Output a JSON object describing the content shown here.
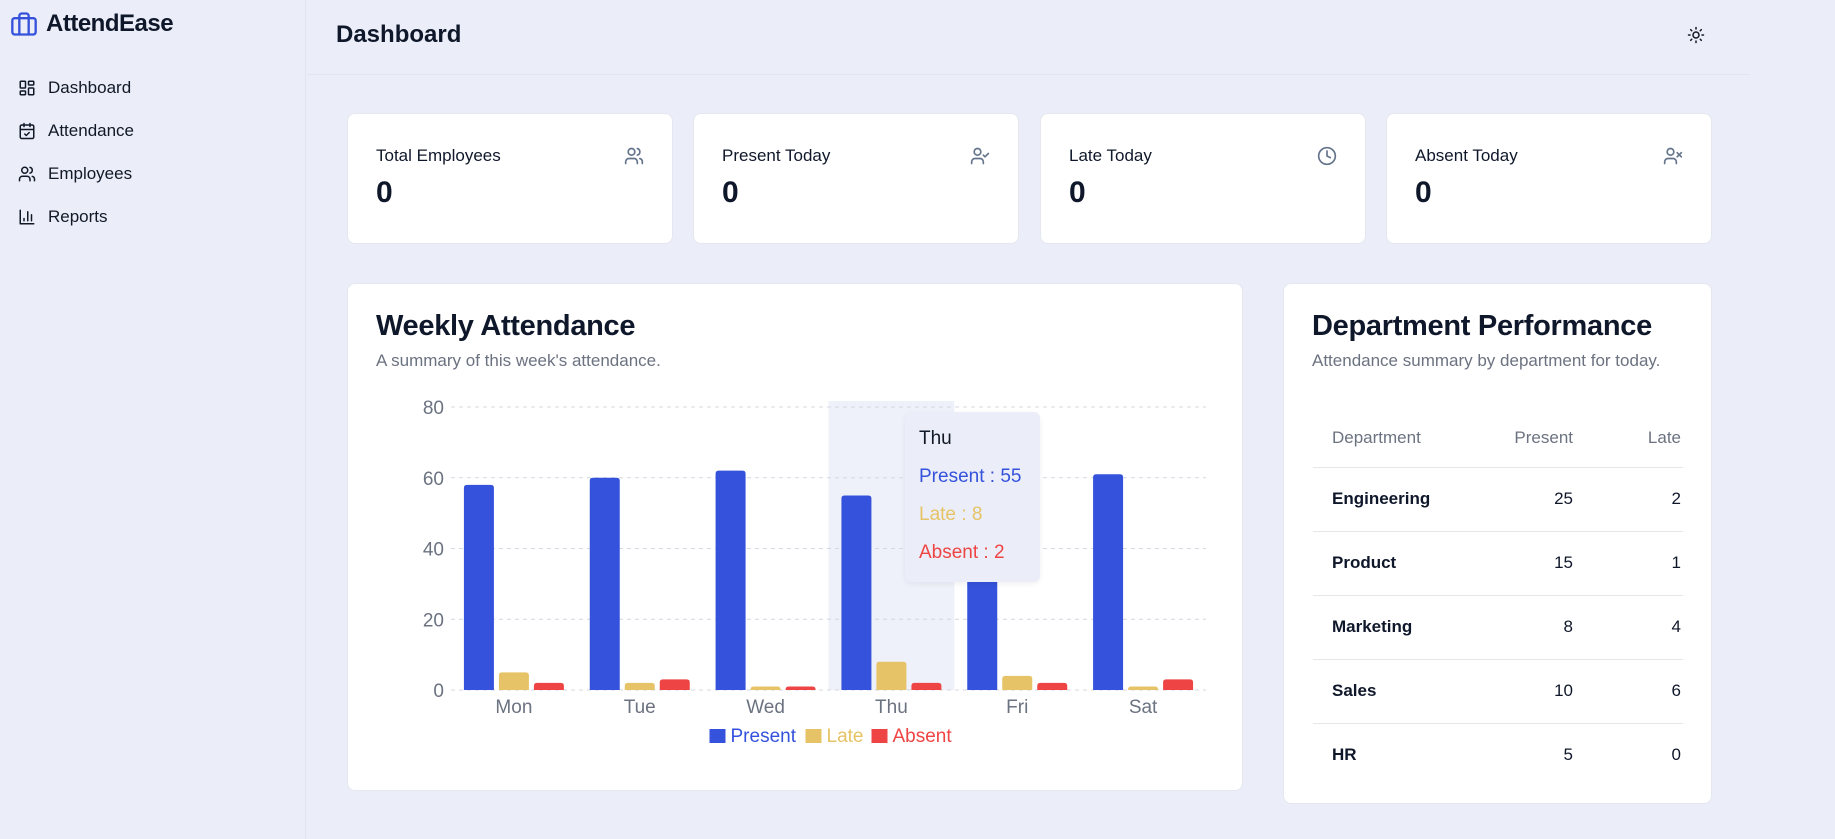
{
  "app": {
    "name": "AttendEase"
  },
  "sidebar": {
    "items": [
      {
        "label": "Dashboard",
        "icon": "dashboard-icon"
      },
      {
        "label": "Attendance",
        "icon": "calendar-check-icon"
      },
      {
        "label": "Employees",
        "icon": "users-icon"
      },
      {
        "label": "Reports",
        "icon": "bar-chart-icon"
      }
    ]
  },
  "header": {
    "title": "Dashboard",
    "theme_icon": "sun-icon"
  },
  "stats": [
    {
      "label": "Total Employees",
      "value": "0",
      "icon": "users-icon"
    },
    {
      "label": "Present Today",
      "value": "0",
      "icon": "user-check-icon"
    },
    {
      "label": "Late Today",
      "value": "0",
      "icon": "clock-icon"
    },
    {
      "label": "Absent Today",
      "value": "0",
      "icon": "user-x-icon"
    }
  ],
  "weekly": {
    "title": "Weekly Attendance",
    "subtitle": "A summary of this week's attendance."
  },
  "chart_data": {
    "type": "bar",
    "categories": [
      "Mon",
      "Tue",
      "Wed",
      "Thu",
      "Fri",
      "Sat"
    ],
    "series": [
      {
        "name": "Present",
        "color": "#3452db",
        "values": [
          58,
          60,
          62,
          55,
          59,
          61
        ]
      },
      {
        "name": "Late",
        "color": "#e6c366",
        "values": [
          5,
          2,
          1,
          8,
          4,
          1
        ]
      },
      {
        "name": "Absent",
        "color": "#ef4444",
        "values": [
          2,
          3,
          1,
          2,
          2,
          3
        ]
      }
    ],
    "ylim": [
      0,
      80
    ],
    "yticks": [
      0,
      20,
      40,
      60,
      80
    ],
    "grid": true,
    "legend": "bottom-center",
    "highlighted_category": "Thu"
  },
  "tooltip": {
    "title": "Thu",
    "rows": [
      {
        "text": "Present : 55",
        "color": "#3452db"
      },
      {
        "text": "Late : 8",
        "color": "#e6c366"
      },
      {
        "text": "Absent : 2",
        "color": "#ef4444"
      }
    ]
  },
  "department": {
    "title": "Department Performance",
    "subtitle": "Attendance summary by department for today.",
    "columns": [
      "Department",
      "Present",
      "Late"
    ],
    "rows": [
      {
        "name": "Engineering",
        "present": "25",
        "late": "2"
      },
      {
        "name": "Product",
        "present": "15",
        "late": "1"
      },
      {
        "name": "Marketing",
        "present": "8",
        "late": "4"
      },
      {
        "name": "Sales",
        "present": "10",
        "late": "6"
      },
      {
        "name": "HR",
        "present": "5",
        "late": "0"
      }
    ]
  }
}
